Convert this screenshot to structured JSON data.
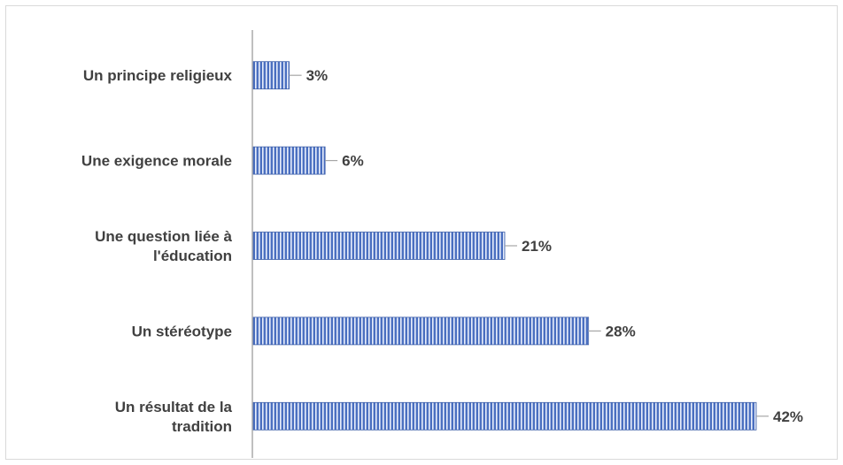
{
  "chart_data": {
    "type": "bar",
    "orientation": "horizontal",
    "categories": [
      [
        "Un principe religieux"
      ],
      [
        "Une exigence morale"
      ],
      [
        "Une question liée à",
        "l'éducation"
      ],
      [
        "Un stéréotype"
      ],
      [
        "Un résultat de la",
        "tradition"
      ]
    ],
    "values": [
      3,
      6,
      21,
      28,
      42
    ],
    "value_labels": [
      "3%",
      "6%",
      "21%",
      "28%",
      "42%"
    ],
    "unit": "%",
    "xlim": [
      0,
      45
    ],
    "grid": false,
    "legend": "none",
    "colors": {
      "bar_fill": "#4a6fc0",
      "bar_stripe": "#e8eefb",
      "axis": "#bfbfbf",
      "leader": "#a6a6a6",
      "text": "#404040"
    }
  }
}
